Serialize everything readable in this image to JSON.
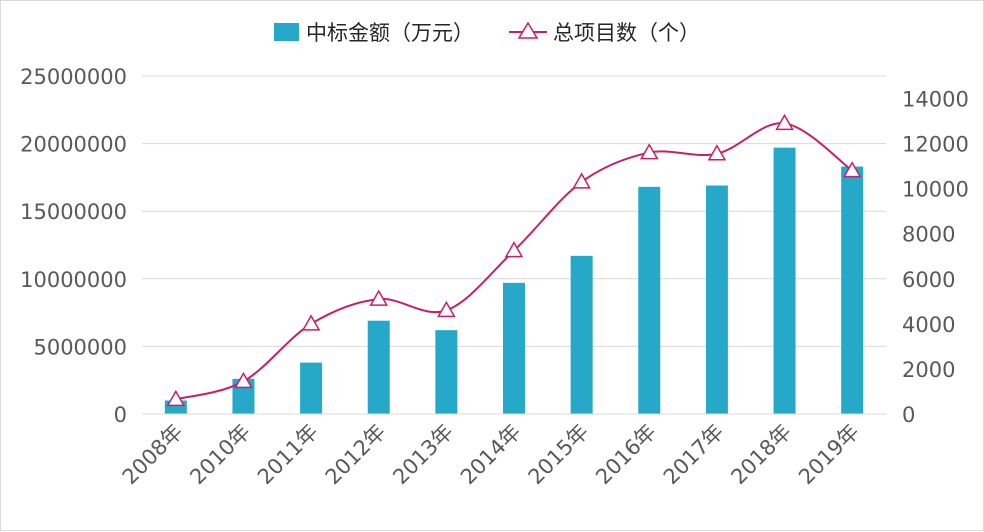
{
  "chart_data": {
    "type": "bar",
    "categories": [
      "2008年",
      "2010年",
      "2011年",
      "2012年",
      "2013年",
      "2014年",
      "2015年",
      "2016年",
      "2017年",
      "2018年",
      "2019年"
    ],
    "series": [
      {
        "name": "中标金额（万元）",
        "type": "bar",
        "axis": "left",
        "color": "#26a9c8",
        "values": [
          1000000,
          2600000,
          3800000,
          6900000,
          6200000,
          9700000,
          11700000,
          16800000,
          16900000,
          19700000,
          18300000
        ]
      },
      {
        "name": "总项目数（个）",
        "type": "line",
        "axis": "right",
        "color": "#c4206c",
        "marker": "triangle",
        "smooth": true,
        "values": [
          650,
          1450,
          4000,
          5100,
          4600,
          7250,
          10300,
          11600,
          11550,
          12900,
          10800
        ]
      }
    ],
    "y_left": {
      "ylim": [
        0,
        25000000
      ],
      "ticks": [
        "0",
        "5000000",
        "10000000",
        "15000000",
        "20000000",
        "25000000"
      ]
    },
    "y_right": {
      "ylim": [
        0,
        15000
      ],
      "ticks": [
        "0",
        "2000",
        "4000",
        "6000",
        "8000",
        "10000",
        "12000",
        "14000"
      ]
    },
    "grid": true,
    "legend_position": "top-center",
    "title": "",
    "xlabel": "",
    "ylabel": ""
  }
}
